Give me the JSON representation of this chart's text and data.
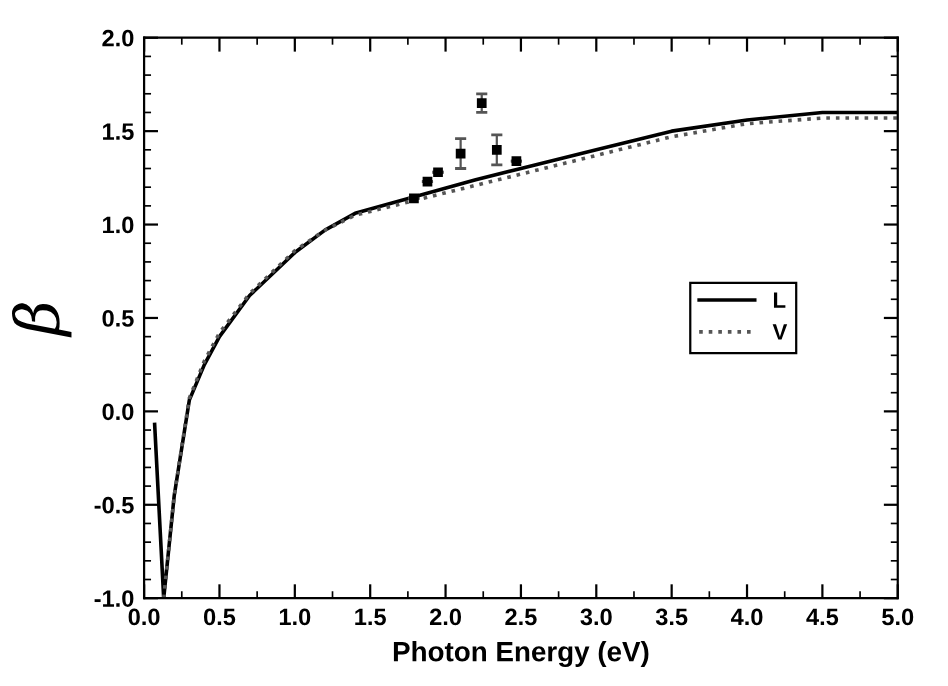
{
  "chart_data": {
    "type": "line",
    "xlabel": "Photon Energy (eV)",
    "ylabel": "β",
    "xlim": [
      0.0,
      5.0
    ],
    "ylim": [
      -1.0,
      2.0
    ],
    "xticks": [
      {
        "value": 0,
        "label": "0.0"
      },
      0.5,
      {
        "value": 1,
        "label": "1.0"
      },
      1.5,
      {
        "value": 2,
        "label": "2.0"
      },
      2.5,
      {
        "value": 3,
        "label": "3.0"
      },
      3.5,
      {
        "value": 4,
        "label": "4.0"
      },
      4.5,
      {
        "value": 5,
        "label": "5.0"
      }
    ],
    "yticks": [
      {
        "value": -1,
        "label": "-1.0"
      },
      -0.5,
      {
        "value": 0,
        "label": "0.0"
      },
      0.5,
      {
        "value": 1,
        "label": "1.0"
      },
      1.5,
      {
        "value": 2,
        "label": "2.0"
      }
    ],
    "grid": false,
    "legend": "right",
    "series": [
      {
        "name": "L",
        "color": "#000000",
        "line_style": "solid",
        "x": [
          0.07,
          0.13,
          0.2,
          0.3,
          0.4,
          0.5,
          0.7,
          1.0,
          1.2,
          1.4,
          1.8,
          2.2,
          2.5,
          3.0,
          3.5,
          4.0,
          4.5,
          5.0
        ],
        "values": [
          -0.07,
          -1.0,
          -0.45,
          0.06,
          0.25,
          0.4,
          0.62,
          0.85,
          0.97,
          1.06,
          1.15,
          1.24,
          1.3,
          1.4,
          1.5,
          1.56,
          1.6,
          1.6
        ]
      },
      {
        "name": "V",
        "color": "#555555",
        "line_style": "dotted",
        "x": [
          0.13,
          0.2,
          0.3,
          0.4,
          0.5,
          0.7,
          1.0,
          1.2,
          1.4,
          1.8,
          2.2,
          2.5,
          3.0,
          3.5,
          4.0,
          4.5,
          5.0
        ],
        "values": [
          -1.0,
          -0.45,
          0.07,
          0.27,
          0.42,
          0.63,
          0.86,
          0.97,
          1.05,
          1.13,
          1.21,
          1.27,
          1.37,
          1.47,
          1.54,
          1.57,
          1.57
        ]
      },
      {
        "type": "scatter",
        "color": "#000000",
        "marker": "square",
        "x": [
          1.79,
          1.88,
          1.95,
          2.1,
          2.24,
          2.34,
          2.47
        ],
        "values": [
          1.14,
          1.23,
          1.28,
          1.38,
          1.65,
          1.4,
          1.34
        ],
        "errors": [
          null,
          null,
          null,
          0.08,
          0.05,
          0.08,
          null
        ]
      }
    ]
  }
}
